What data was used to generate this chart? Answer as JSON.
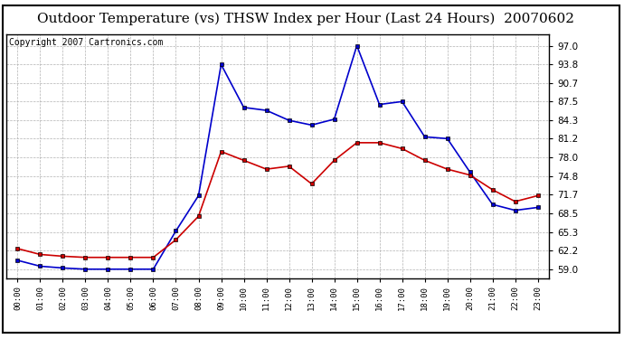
{
  "title": "Outdoor Temperature (vs) THSW Index per Hour (Last 24 Hours)  20070602",
  "copyright": "Copyright 2007 Cartronics.com",
  "hours": [
    0,
    1,
    2,
    3,
    4,
    5,
    6,
    7,
    8,
    9,
    10,
    11,
    12,
    13,
    14,
    15,
    16,
    17,
    18,
    19,
    20,
    21,
    22,
    23
  ],
  "hour_labels": [
    "00:00",
    "01:00",
    "02:00",
    "03:00",
    "04:00",
    "05:00",
    "06:00",
    "07:00",
    "08:00",
    "09:00",
    "10:00",
    "11:00",
    "12:00",
    "13:00",
    "14:00",
    "15:00",
    "16:00",
    "17:00",
    "18:00",
    "19:00",
    "20:00",
    "21:00",
    "22:00",
    "23:00"
  ],
  "temp_red": [
    62.5,
    61.5,
    61.2,
    61.0,
    61.0,
    61.0,
    61.0,
    64.0,
    68.0,
    79.0,
    77.5,
    76.0,
    76.5,
    73.5,
    77.5,
    80.5,
    80.5,
    79.5,
    77.5,
    76.0,
    75.0,
    72.5,
    70.5,
    71.5
  ],
  "thsw_blue": [
    60.5,
    59.5,
    59.2,
    59.0,
    59.0,
    59.0,
    59.0,
    65.5,
    71.5,
    93.8,
    86.5,
    86.0,
    84.3,
    83.5,
    84.5,
    97.0,
    87.0,
    87.5,
    81.5,
    81.2,
    75.5,
    70.0,
    69.0,
    69.5
  ],
  "yticks": [
    59.0,
    62.2,
    65.3,
    68.5,
    71.7,
    74.8,
    78.0,
    81.2,
    84.3,
    87.5,
    90.7,
    93.8,
    97.0
  ],
  "ymin": 57.5,
  "ymax": 99.0,
  "red_color": "#cc0000",
  "blue_color": "#0000cc",
  "grid_color": "#aaaaaa",
  "bg_color": "#ffffff",
  "title_fontsize": 11,
  "copyright_fontsize": 7
}
